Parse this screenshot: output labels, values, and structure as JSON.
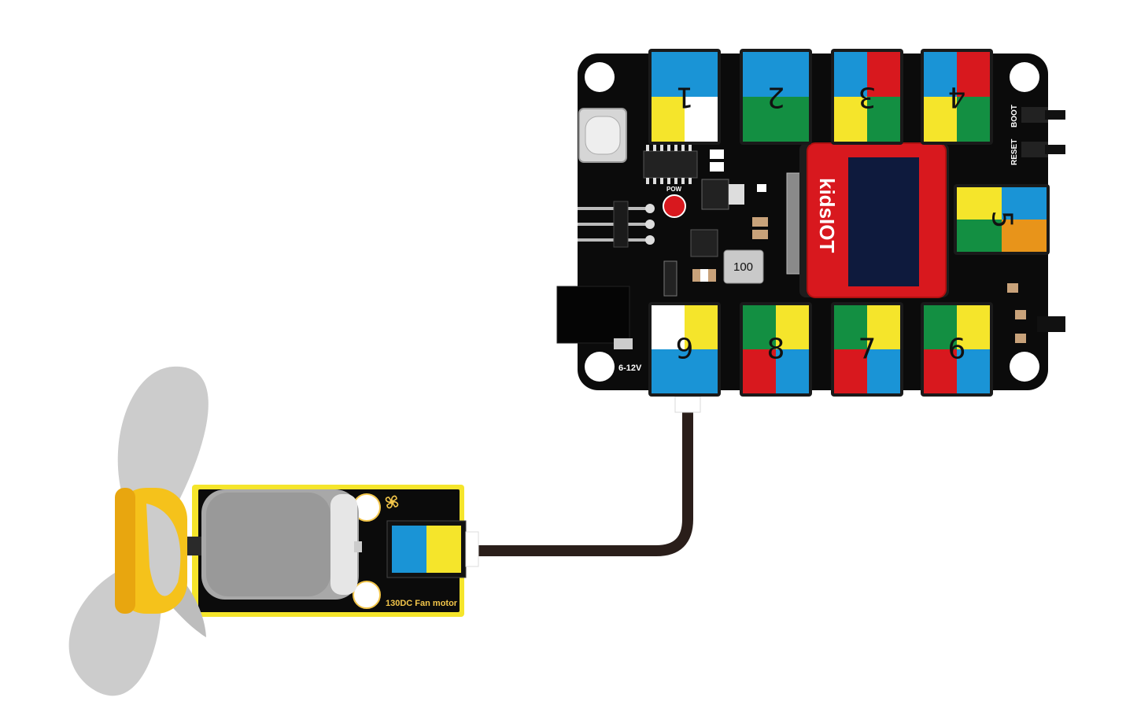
{
  "board": {
    "brand": "kidsIOT",
    "power_label": "POW",
    "inductor_label": "100",
    "boot_label": "BOOT",
    "reset_label": "RESET",
    "voltage_label": "6-12V",
    "ports": [
      {
        "number": "1",
        "colors": [
          "#1a94d6",
          "#1a94d6",
          "#f5e52b",
          "#ffffff"
        ]
      },
      {
        "number": "2",
        "colors": [
          "#1a94d6",
          "#1a94d6",
          "#138f42",
          "#138f42"
        ]
      },
      {
        "number": "3",
        "colors": [
          "#1a94d6",
          "#d8181e",
          "#f5e52b",
          "#138f42"
        ]
      },
      {
        "number": "4",
        "colors": [
          "#1a94d6",
          "#d8181e",
          "#f5e52b",
          "#138f42"
        ]
      },
      {
        "number": "5",
        "colors": [
          "#f5e52b",
          "#1a94d6",
          "#138f42",
          "#e8941a"
        ]
      },
      {
        "number": "6",
        "colors": [
          "#138f42",
          "#f5e52b",
          "#d8181e",
          "#1a94d6"
        ]
      },
      {
        "number": "7",
        "colors": [
          "#138f42",
          "#f5e52b",
          "#d8181e",
          "#1a94d6"
        ]
      },
      {
        "number": "8",
        "colors": [
          "#138f42",
          "#f5e52b",
          "#d8181e",
          "#1a94d6"
        ]
      },
      {
        "number": "9",
        "colors": [
          "#ffffff",
          "#f5e52b",
          "#1a94d6",
          "#1a94d6"
        ]
      }
    ]
  },
  "fan_module": {
    "label": "130DC Fan motor",
    "connector_colors": [
      "#1a94d6",
      "#f5e52b"
    ]
  },
  "colors": {
    "board": "#0b0b0b",
    "oled_frame": "#d8181e",
    "oled_screen": "#0e1a3d",
    "cable": "#2a1e1a",
    "fan_blade": "#cccccc",
    "fan_hub": "#f5c21b",
    "module_border": "#f5e52b"
  }
}
